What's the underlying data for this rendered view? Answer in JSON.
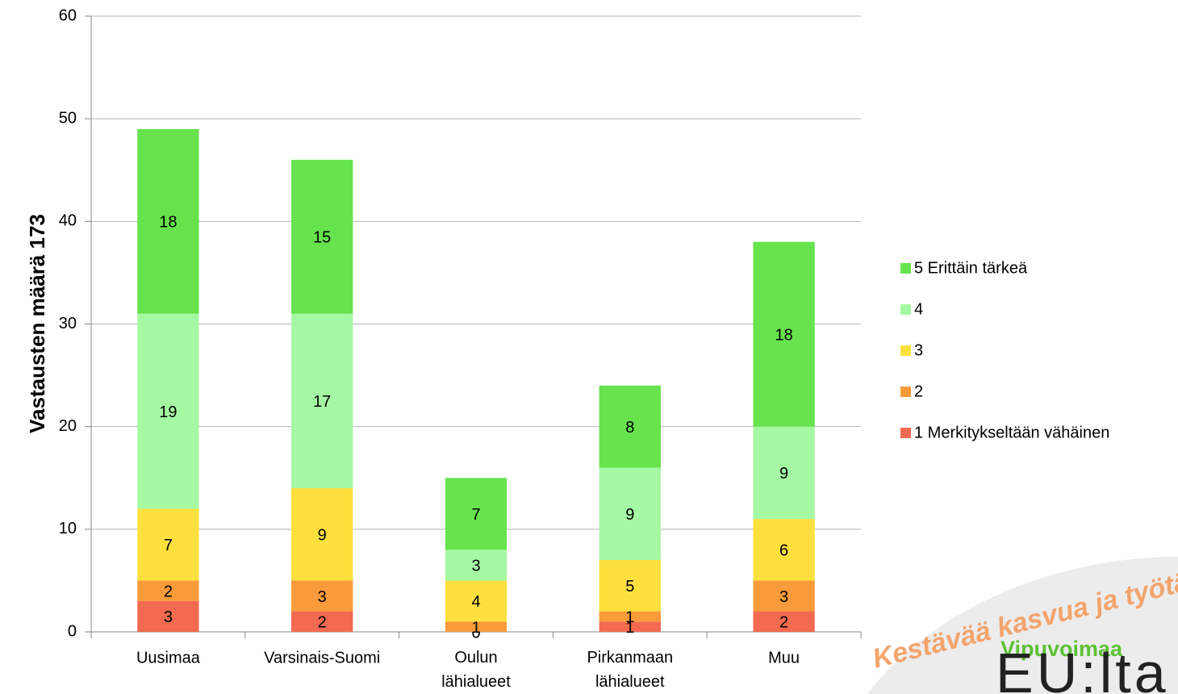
{
  "chart_data": {
    "type": "stacked_bar",
    "y_label": "Vastausten määrä 173",
    "categories": [
      "Uusimaa",
      "Varsinais-Suomi",
      "Oulun lähialueet",
      "Pirkanmaan lähialueet",
      "Muu"
    ],
    "series": [
      {
        "name": "1 Merkitykseltään vähäinen",
        "color": "#f26a50",
        "values": [
          3,
          2,
          0,
          1,
          2
        ]
      },
      {
        "name": "2",
        "color": "#f99b3b",
        "values": [
          2,
          3,
          1,
          1,
          3
        ]
      },
      {
        "name": "3",
        "color": "#fde03e",
        "values": [
          7,
          9,
          4,
          5,
          6
        ]
      },
      {
        "name": "4",
        "color": "#a5f9a3",
        "values": [
          19,
          17,
          3,
          9,
          9
        ]
      },
      {
        "name": "5 Erittäin tärkeä",
        "color": "#66e34d",
        "values": [
          18,
          15,
          7,
          8,
          18
        ]
      }
    ],
    "ylim": [
      0,
      60
    ],
    "yticks": [
      0,
      10,
      20,
      30,
      40,
      50,
      60
    ],
    "grid": true,
    "legend": "right",
    "annotations": [
      "Kestävää kasvua ja työtä",
      "Vipuvoimaa",
      "EU:lta"
    ]
  }
}
